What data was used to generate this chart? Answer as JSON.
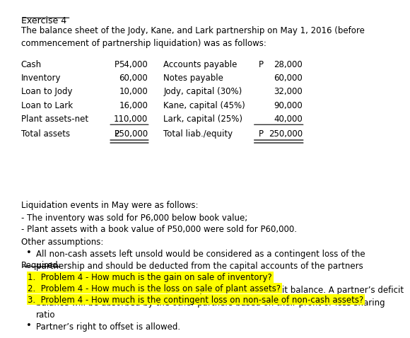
{
  "title": "Exercise 4",
  "intro": "The balance sheet of the Jody, Kane, and Lark partnership on May 1, 2016 (before\ncommencement of partnership liquidation) was as follows:",
  "assets": [
    [
      "Cash",
      "P",
      "54,000"
    ],
    [
      "Inventory",
      "",
      "60,000"
    ],
    [
      "Loan to Jody",
      "",
      "10,000"
    ],
    [
      "Loan to Lark",
      "",
      "16,000"
    ],
    [
      "Plant assets-net",
      "",
      "110,000"
    ]
  ],
  "liabilities": [
    [
      "Accounts payable",
      "P",
      "28,000"
    ],
    [
      "Notes payable",
      "",
      "60,000"
    ],
    [
      "Jody, capital (30%)",
      "",
      "32,000"
    ],
    [
      "Kane, capital (45%)",
      "",
      "90,000"
    ],
    [
      "Lark, capital (25%)",
      "",
      "40,000"
    ]
  ],
  "total_assets_label": "Total assets",
  "total_assets_p": "P",
  "total_assets_value": "250,000",
  "total_liab_label": "Total liab./equity",
  "total_liab_p": "P",
  "total_liab_value": "250,000",
  "liquidation_header": "Liquidation events in May were as follows:",
  "liquidation_events": [
    "- The inventory was sold for P6,000 below book value;",
    "- Plant assets with a book value of P50,000 were sold for P60,000."
  ],
  "assumptions_header": "Other assumptions:",
  "assumptions": [
    "All non-cash assets left unsold would be considered as a contingent loss of the\npartnership and should be deducted from the capital accounts of the partners\naccording to their profit or loss sharing ratio.",
    "No additional cash contribution from a partner with a deficit balance. A partner’s deficit\nbalance will be absorbed by the other partners based on their profit or loss sharing\nratio",
    "Partner’s right to offset is allowed."
  ],
  "required_label": "Required:",
  "required_items": [
    "1.  Problem 4 - How much is the gain on sale of inventory?",
    "2.  Problem 4 - How much is the loss on sale of plant assets?",
    "3.  Problem 4 - How much is the contingent loss on non-sale of non-cash assets?"
  ],
  "highlight_color": "#FFFF00",
  "bg_color": "#FFFFFF",
  "text_color": "#000000",
  "font_size": 8.5
}
